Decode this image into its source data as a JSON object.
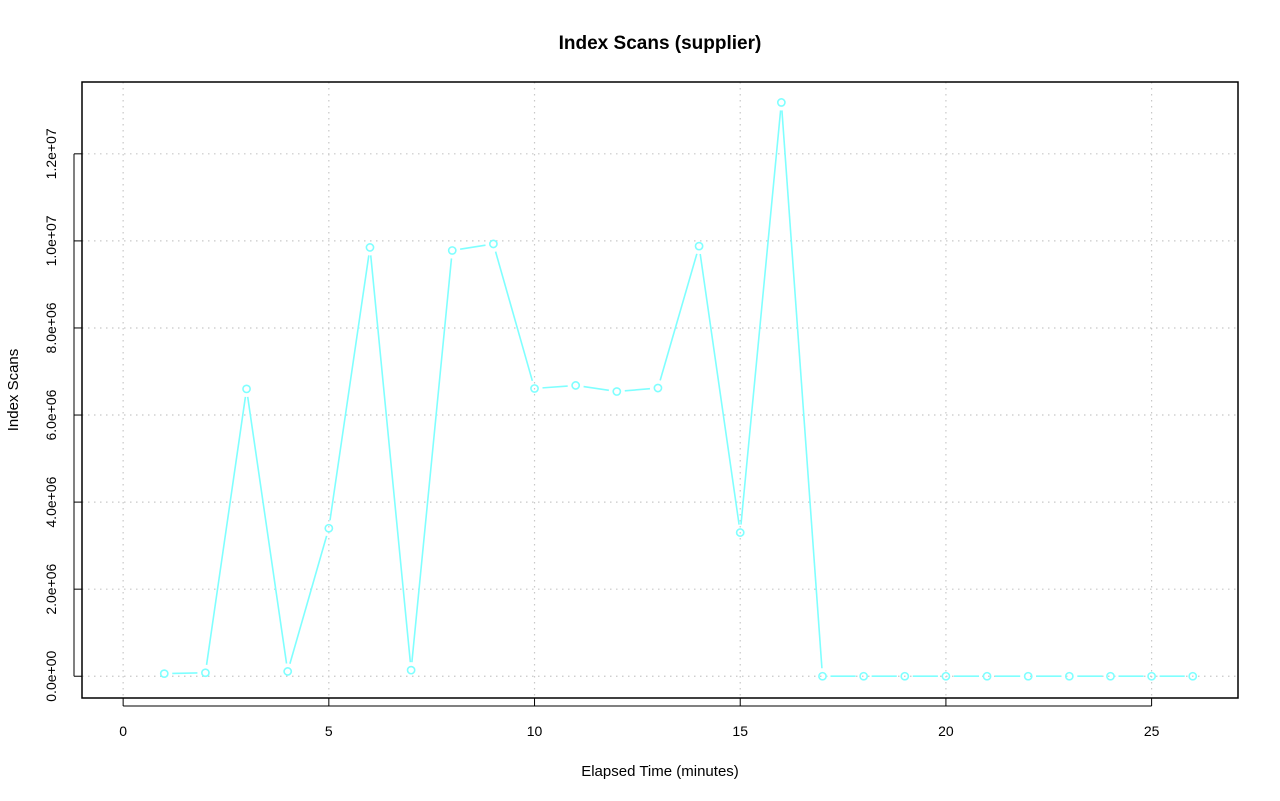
{
  "chart_data": {
    "type": "line",
    "title": "Index Scans (supplier)",
    "xlabel": "Elapsed Time (minutes)",
    "ylabel": "Index Scans",
    "xlim": [
      -1,
      27.1
    ],
    "ylim": [
      -500000,
      13650000
    ],
    "x_ticks": [
      0,
      5,
      10,
      15,
      20,
      25
    ],
    "x_tick_labels": [
      "0",
      "5",
      "10",
      "15",
      "20",
      "25"
    ],
    "y_ticks": [
      0,
      2000000,
      4000000,
      6000000,
      8000000,
      10000000,
      12000000
    ],
    "y_tick_labels": [
      "0.0e+00",
      "2.0e+06",
      "4.0e+06",
      "6.0e+06",
      "8.0e+06",
      "1.0e+07",
      "1.2e+07"
    ],
    "grid": true,
    "grid_style": "dotted",
    "series": [
      {
        "color": "#7FFFFF",
        "marker": "circle",
        "x": [
          1,
          2,
          3,
          4,
          5,
          6,
          7,
          8,
          9,
          10,
          11,
          12,
          13,
          14,
          15,
          16,
          17,
          18,
          19,
          20,
          21,
          22,
          23,
          24,
          25,
          26
        ],
        "y": [
          60000,
          80000,
          6600000,
          110000,
          3400000,
          9850000,
          140000,
          9780000,
          9930000,
          6610000,
          6680000,
          6540000,
          6620000,
          9880000,
          3300000,
          13180000,
          0,
          0,
          0,
          0,
          0,
          0,
          0,
          0,
          0,
          0
        ]
      }
    ]
  }
}
